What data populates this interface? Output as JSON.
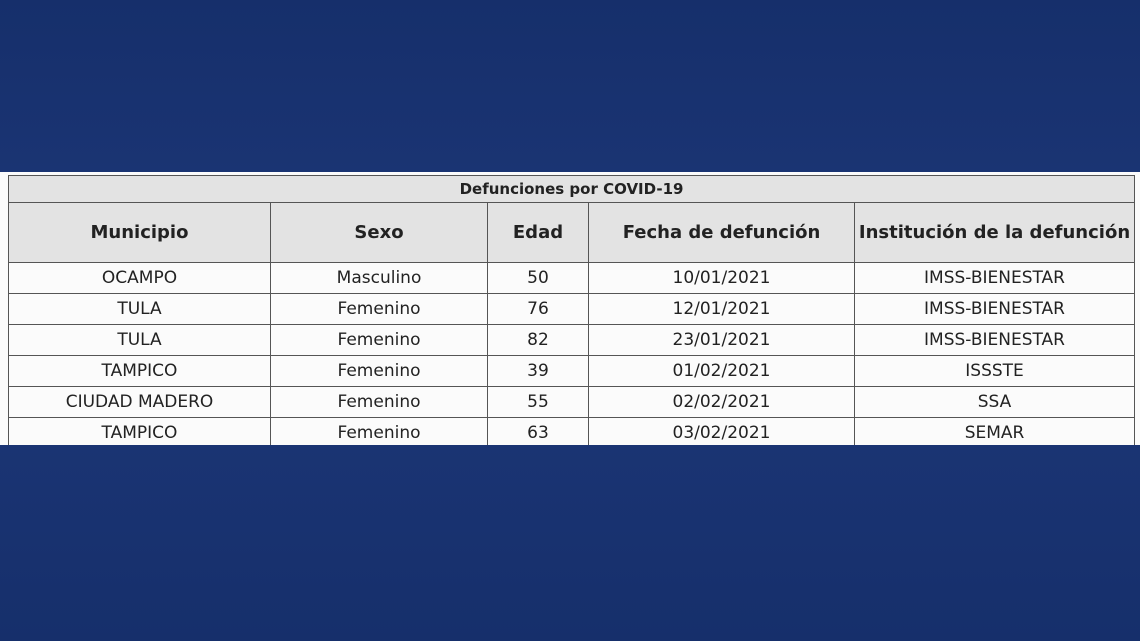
{
  "table": {
    "title": "Defunciones por COVID-19",
    "headers": [
      "Municipio",
      "Sexo",
      "Edad",
      "Fecha de defunción",
      "Institución de la defunción"
    ],
    "rows": [
      [
        "OCAMPO",
        "Masculino",
        "50",
        "10/01/2021",
        "IMSS-BIENESTAR"
      ],
      [
        "TULA",
        "Femenino",
        "76",
        "12/01/2021",
        "IMSS-BIENESTAR"
      ],
      [
        "TULA",
        "Femenino",
        "82",
        "23/01/2021",
        "IMSS-BIENESTAR"
      ],
      [
        "TAMPICO",
        "Femenino",
        "39",
        "01/02/2021",
        "ISSSTE"
      ],
      [
        "CIUDAD MADERO",
        "Femenino",
        "55",
        "02/02/2021",
        "SSA"
      ],
      [
        "TAMPICO",
        "Femenino",
        "63",
        "03/02/2021",
        "SEMAR"
      ]
    ]
  },
  "colors": {
    "background": "#173270",
    "header_fill": "#e3e3e3"
  }
}
